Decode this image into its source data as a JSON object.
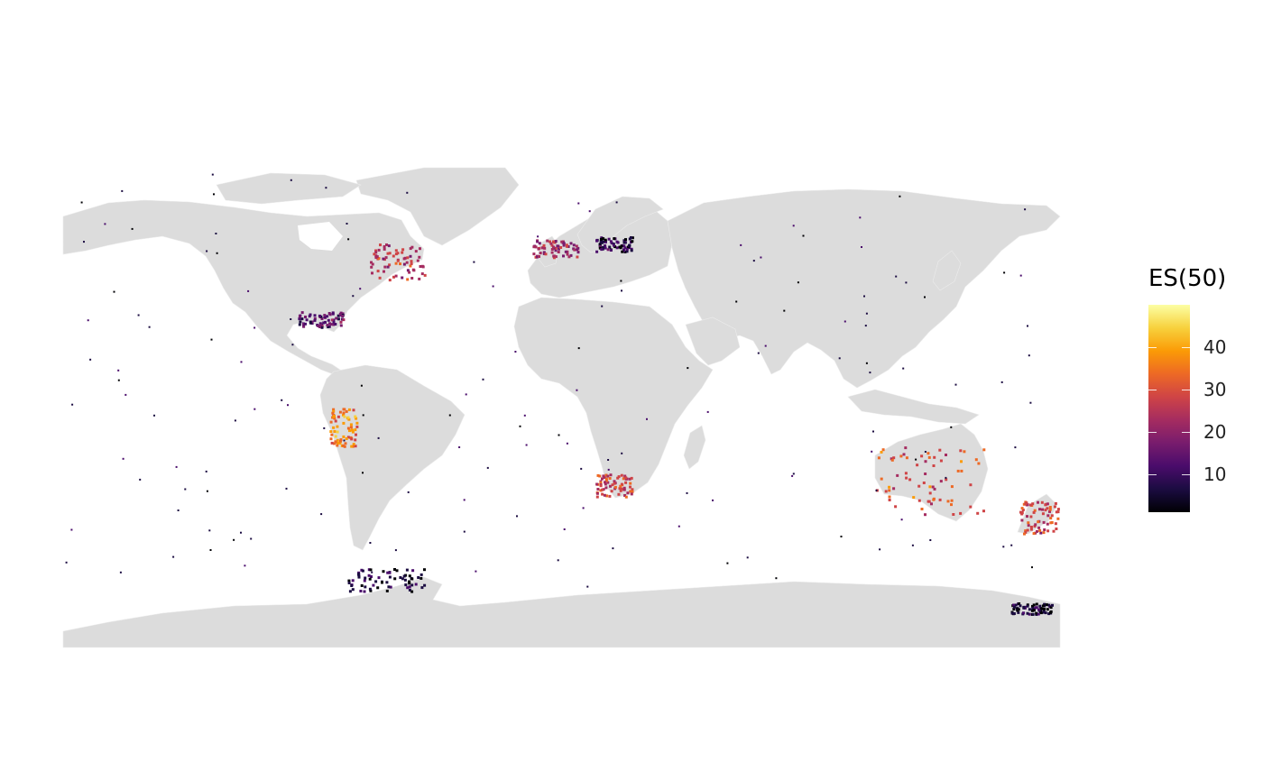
{
  "map": {
    "land_color": "#dcdcdc",
    "ocean_color": "#ffffff"
  },
  "legend": {
    "title": "ES(50)",
    "ticks": [
      {
        "label": "10",
        "value": 10
      },
      {
        "label": "20",
        "value": 20
      },
      {
        "label": "30",
        "value": 30
      },
      {
        "label": "40",
        "value": 40
      }
    ],
    "range": [
      1,
      50
    ],
    "palette": [
      "#000004",
      "#1b0c41",
      "#4a0c6b",
      "#781c6d",
      "#a52c60",
      "#cf4446",
      "#ed6925",
      "#fb9b06",
      "#f7d13d",
      "#fcffa4"
    ]
  },
  "regions": [
    {
      "name": "north-atlantic-europe",
      "value": 22
    },
    {
      "name": "us-east-coast",
      "value": 26
    },
    {
      "name": "baltic-sea",
      "value": 8
    },
    {
      "name": "gulf-of-mexico",
      "value": 14
    },
    {
      "name": "peru-coast",
      "value": 36
    },
    {
      "name": "south-africa",
      "value": 28
    },
    {
      "name": "australia-coast",
      "value": 30
    },
    {
      "name": "new-zealand",
      "value": 27
    },
    {
      "name": "antarctic-peninsula",
      "value": 6
    },
    {
      "name": "ross-sea",
      "value": 5
    }
  ]
}
